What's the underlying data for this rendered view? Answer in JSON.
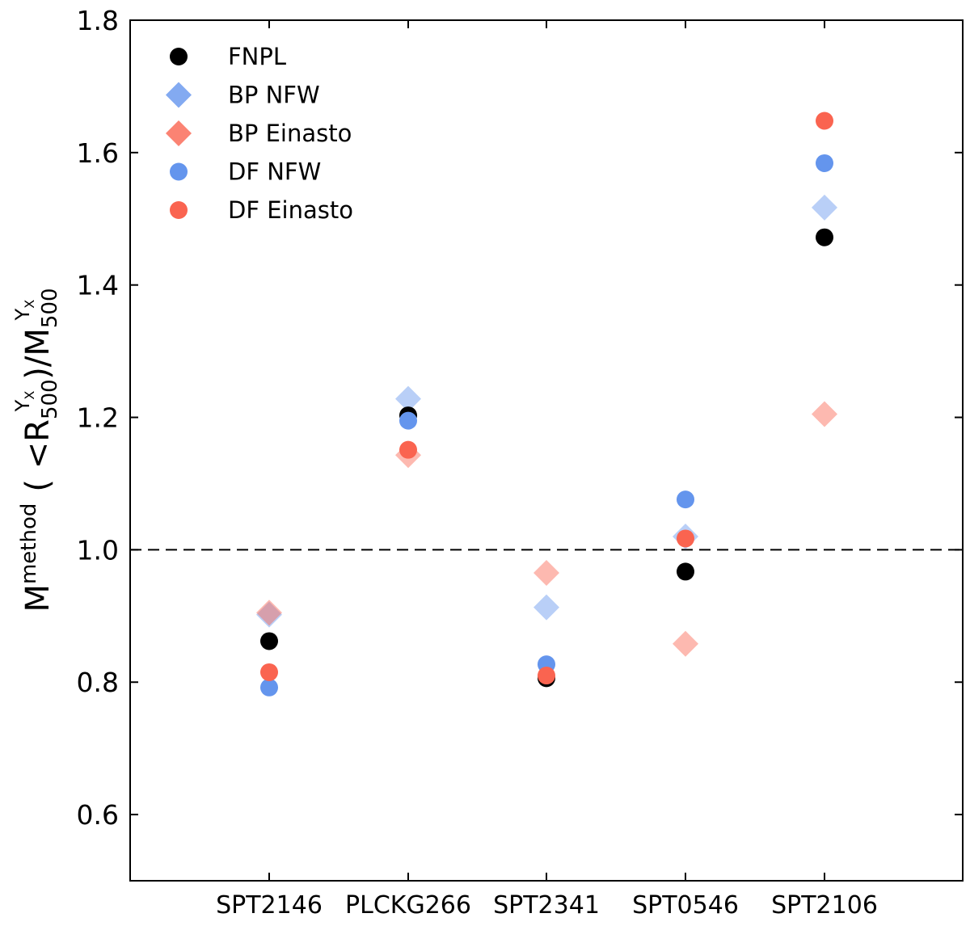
{
  "chart_data": {
    "type": "scatter",
    "title": "",
    "xlabel": "",
    "ylabel": {
      "base": "M",
      "sup_method": "method",
      "open": "( <R",
      "sub_500": "500",
      "sup_yx": "Y",
      "sup_yx_sub": "X",
      "close": ")/M",
      "sub_500_b": "500",
      "sup_yx_b": "Y",
      "sup_yx_b_sub": "X"
    },
    "ylim": [
      0.5,
      1.8
    ],
    "yticks": [
      "0.6",
      "0.8",
      "1.0",
      "1.2",
      "1.4",
      "1.6",
      "1.8"
    ],
    "yticks_values": [
      0.6,
      0.8,
      1.0,
      1.2,
      1.4,
      1.6,
      1.8
    ],
    "categories": [
      "SPT2146",
      "PLCKG266",
      "SPT2341",
      "SPT0546",
      "SPT2106"
    ],
    "reference_line": 1.0,
    "grid": false,
    "legend_position": "upper-left",
    "series": [
      {
        "name": "BP NFW",
        "marker": "diamond",
        "color": "#6495ed",
        "opacity": 0.45,
        "values": [
          0.902,
          1.228,
          0.913,
          1.02,
          1.517
        ]
      },
      {
        "name": "BP Einasto",
        "marker": "diamond",
        "color": "#fa6450",
        "opacity": 0.45,
        "values": [
          0.905,
          1.143,
          0.965,
          0.858,
          1.205
        ]
      },
      {
        "name": "FNPL",
        "marker": "circle",
        "color": "#000000",
        "opacity": 1.0,
        "values": [
          0.862,
          1.203,
          0.806,
          0.967,
          1.472
        ]
      },
      {
        "name": "DF NFW",
        "marker": "circle",
        "color": "#6495ed",
        "opacity": 1.0,
        "values": [
          0.792,
          1.195,
          0.827,
          1.076,
          1.584
        ]
      },
      {
        "name": "DF Einasto",
        "marker": "circle",
        "color": "#fa6450",
        "opacity": 1.0,
        "values": [
          0.815,
          1.151,
          0.81,
          1.017,
          1.648
        ]
      }
    ],
    "legend_order": [
      "FNPL",
      "BP NFW",
      "BP Einasto",
      "DF NFW",
      "DF Einasto"
    ]
  }
}
